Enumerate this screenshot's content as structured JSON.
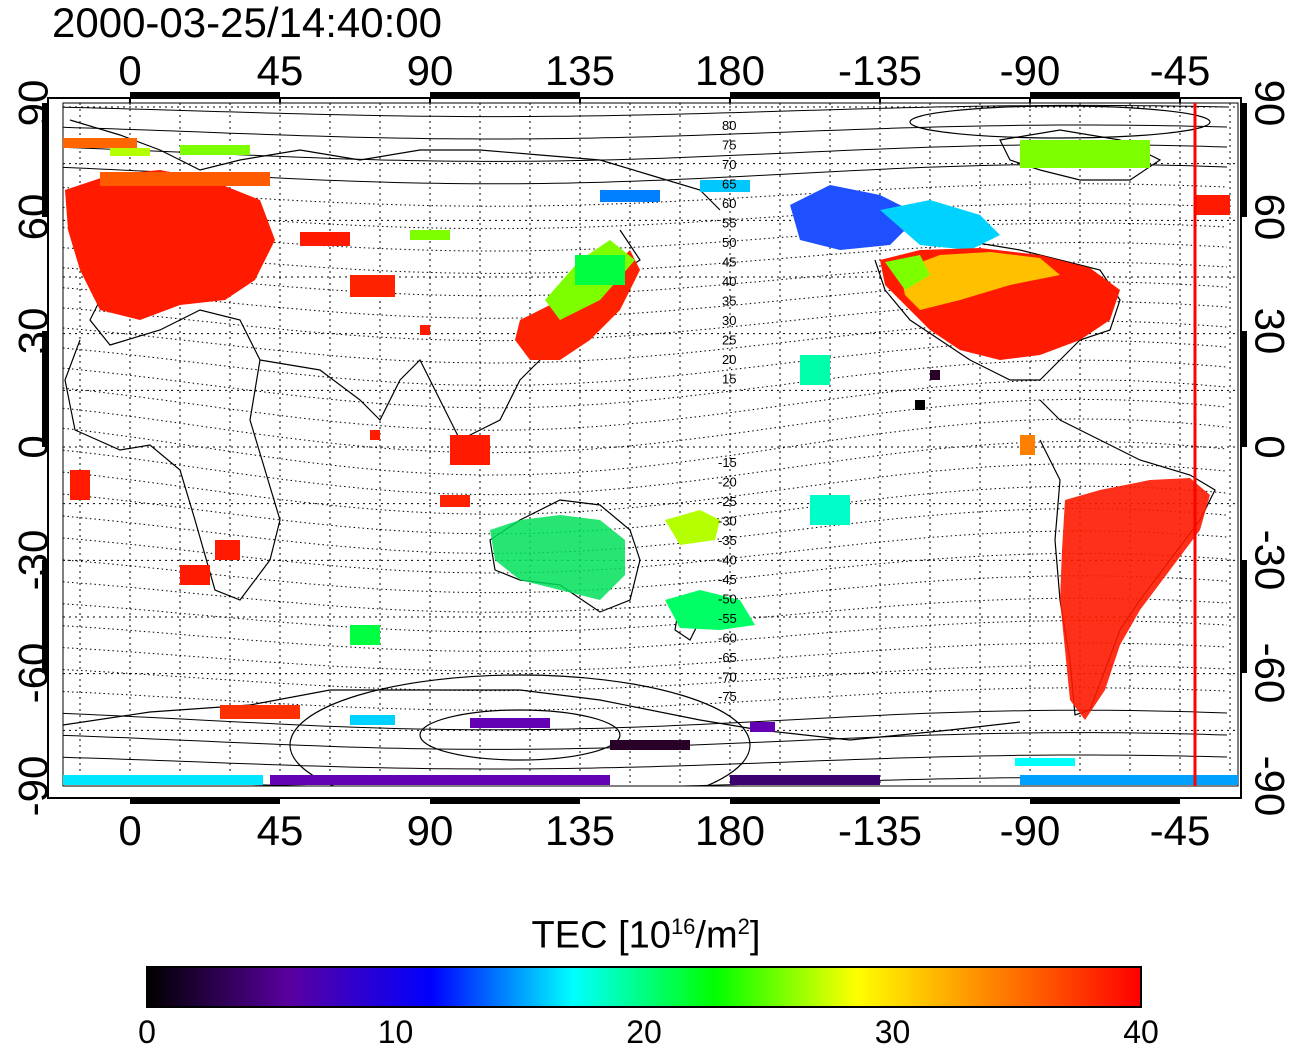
{
  "timestamp": "2000-03-25/14:40:00",
  "map": {
    "lon_ticks": [
      "0",
      "45",
      "90",
      "135",
      "180",
      "-135",
      "-90",
      "-45"
    ],
    "lat_ticks": [
      "90",
      "60",
      "30",
      "0",
      "-30",
      "-60",
      "-90"
    ],
    "mlat_labels_north": [
      "80",
      "75",
      "70",
      "65",
      "60",
      "55",
      "50",
      "45",
      "40",
      "35",
      "30",
      "25",
      "20",
      "15"
    ],
    "mlat_labels_south": [
      "-15",
      "-20",
      "-25",
      "-30",
      "-35",
      "-40",
      "-45",
      "-50",
      "-55",
      "-60",
      "-65",
      "-70",
      "-75"
    ],
    "terminator_longitude": -50,
    "terminator_color": "#ff0000"
  },
  "colorbar": {
    "title_main": "TEC  [10",
    "title_sup1": "16",
    "title_mid": "/m",
    "title_sup2": "2",
    "title_end": "]",
    "ticks": [
      "0",
      "10",
      "20",
      "30",
      "40"
    ],
    "min": 0,
    "max": 40,
    "colors": [
      "#000000",
      "#5a00a0",
      "#0000ff",
      "#00ffff",
      "#00ff00",
      "#ffff00",
      "#ff7f00",
      "#ff0000"
    ]
  }
}
